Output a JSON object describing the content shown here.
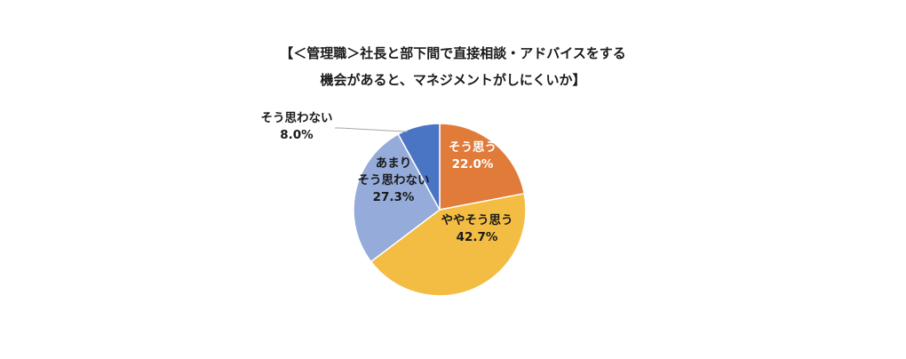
{
  "chart_data": {
    "type": "pie",
    "title_lines": [
      "【＜管理職＞社長と部下間で直接相談・アドバイスをする",
      "機会があると、マネジメントがしにくいか】"
    ],
    "slices": [
      {
        "label_lines": [
          "そう思う"
        ],
        "value": 22.0,
        "value_label": "22.0%",
        "color": "#e07b3a",
        "text_color": "#ffffff"
      },
      {
        "label_lines": [
          "ややそう思う"
        ],
        "value": 42.7,
        "value_label": "42.7%",
        "color": "#f3bd44",
        "text_color": "#1a1a1a"
      },
      {
        "label_lines": [
          "あまり",
          "そう思わない"
        ],
        "value": 27.3,
        "value_label": "27.3%",
        "color": "#95abd9",
        "text_color": "#1a1a1a"
      },
      {
        "label_lines": [
          "そう思わない"
        ],
        "value": 8.0,
        "value_label": "8.0%",
        "color": "#4a74c4",
        "text_color": "#1a1a1a"
      }
    ],
    "start_angle": "12 o'clock",
    "direction": "clockwise",
    "slice_border_color": "#ffffff",
    "leader_line_color": "#a6a6a6"
  }
}
